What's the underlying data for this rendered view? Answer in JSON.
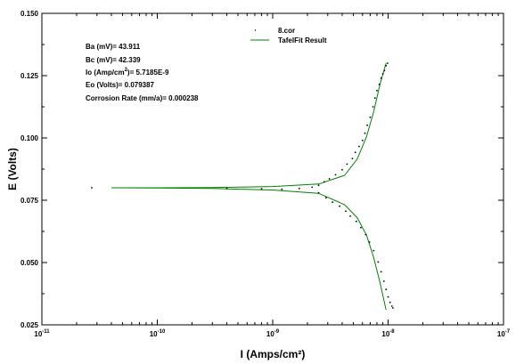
{
  "chart_data": {
    "type": "scatter",
    "xscale": "log",
    "xlim": [
      1e-11,
      1e-07
    ],
    "ylim": [
      0.025,
      0.15
    ],
    "xlabel": "I (Amps/cm²)",
    "ylabel": "E (Volts)",
    "xticks": [
      {
        "value": 1e-11,
        "mant": "10",
        "exp": "-11"
      },
      {
        "value": 1e-10,
        "mant": "10",
        "exp": "-10"
      },
      {
        "value": 1e-09,
        "mant": "10",
        "exp": "-9"
      },
      {
        "value": 1e-08,
        "mant": "10",
        "exp": "-8"
      },
      {
        "value": 1e-07,
        "mant": "10",
        "exp": "-7"
      }
    ],
    "yticks": [
      "0.025",
      "0.050",
      "0.075",
      "0.100",
      "0.125",
      "0.150"
    ],
    "legend": {
      "position": "top-center",
      "entries": [
        {
          "label": "8.cor",
          "marker": "dot",
          "color": "#000000"
        },
        {
          "label": "TafelFit Result",
          "marker": "line",
          "color": "#008000"
        }
      ]
    },
    "annotations": [
      {
        "label": "Ba (mV)= ",
        "value": "43.911"
      },
      {
        "label": "Bc (mV)= ",
        "value": "42.339"
      },
      {
        "label_prefix": "Io (Amp/cm",
        "label_sup": "2",
        "label_suffix": ")= ",
        "value": "5.7185E-9"
      },
      {
        "label": "Eo (Volts)= ",
        "value": "0.079387"
      },
      {
        "label": "Corrosion Rate (mm/a)= ",
        "value": "0.000238"
      }
    ],
    "series": [
      {
        "name": "8.cor",
        "color": "#000000",
        "style": "dots",
        "points": [
          [
            2.7e-11,
            0.08
          ],
          [
            4e-10,
            0.0798
          ],
          [
            8e-10,
            0.0796
          ],
          [
            1.2e-09,
            0.0794
          ],
          [
            1.7e-09,
            0.0797
          ],
          [
            2.2e-09,
            0.0802
          ],
          [
            2.5e-09,
            0.081
          ],
          [
            2.8e-09,
            0.0824
          ],
          [
            3.1e-09,
            0.0836
          ],
          [
            3.5e-09,
            0.0852
          ],
          [
            4e-09,
            0.0872
          ],
          [
            4.4e-09,
            0.0895
          ],
          [
            4.9e-09,
            0.0917
          ],
          [
            5.2e-09,
            0.0942
          ],
          [
            5.6e-09,
            0.0966
          ],
          [
            6e-09,
            0.099
          ],
          [
            6.3e-09,
            0.1019
          ],
          [
            6.6e-09,
            0.1051
          ],
          [
            7e-09,
            0.1083
          ],
          [
            7.4e-09,
            0.1125
          ],
          [
            7.7e-09,
            0.116
          ],
          [
            8e-09,
            0.119
          ],
          [
            8.4e-09,
            0.1215
          ],
          [
            8.7e-09,
            0.124
          ],
          [
            9e-09,
            0.1257
          ],
          [
            9.3e-09,
            0.127
          ],
          [
            9.6e-09,
            0.129
          ],
          [
            9.9e-09,
            0.13
          ],
          [
            2.5e-09,
            0.078
          ],
          [
            2.9e-09,
            0.076
          ],
          [
            3.3e-09,
            0.0742
          ],
          [
            3.8e-09,
            0.0726
          ],
          [
            4.3e-09,
            0.0706
          ],
          [
            4.7e-09,
            0.0686
          ],
          [
            5.3e-09,
            0.0665
          ],
          [
            5.8e-09,
            0.064
          ],
          [
            6.4e-09,
            0.0612
          ],
          [
            6.9e-09,
            0.0582
          ],
          [
            7.5e-09,
            0.0548
          ],
          [
            8.2e-09,
            0.0502
          ],
          [
            8.7e-09,
            0.0463
          ],
          [
            9.2e-09,
            0.0425
          ],
          [
            9.6e-09,
            0.0392
          ],
          [
            1e-08,
            0.0362
          ],
          [
            1.04e-08,
            0.034
          ],
          [
            1.08e-08,
            0.0325
          ],
          [
            1.1e-08,
            0.0318
          ]
        ]
      },
      {
        "name": "TafelFit Result",
        "color": "#008000",
        "style": "line",
        "branches": [
          [
            [
              4e-11,
              0.08
            ],
            [
              1e-10,
              0.08
            ],
            [
              3e-10,
              0.0801
            ],
            [
              1e-09,
              0.0805
            ],
            [
              2.5e-09,
              0.0815
            ],
            [
              4.2e-09,
              0.085
            ],
            [
              5.4e-09,
              0.0915
            ],
            [
              6.5e-09,
              0.1005
            ],
            [
              7.5e-09,
              0.1105
            ],
            [
              8.5e-09,
              0.1215
            ],
            [
              9.6e-09,
              0.13
            ]
          ],
          [
            [
              4e-11,
              0.08
            ],
            [
              1e-10,
              0.0799
            ],
            [
              3e-10,
              0.0797
            ],
            [
              1e-09,
              0.0791
            ],
            [
              2.5e-09,
              0.0778
            ],
            [
              4.2e-09,
              0.0732
            ],
            [
              5.4e-09,
              0.068
            ],
            [
              6.5e-09,
              0.061
            ],
            [
              7.5e-09,
              0.052
            ],
            [
              8.5e-09,
              0.042
            ],
            [
              9.6e-09,
              0.031
            ]
          ]
        ]
      }
    ]
  }
}
